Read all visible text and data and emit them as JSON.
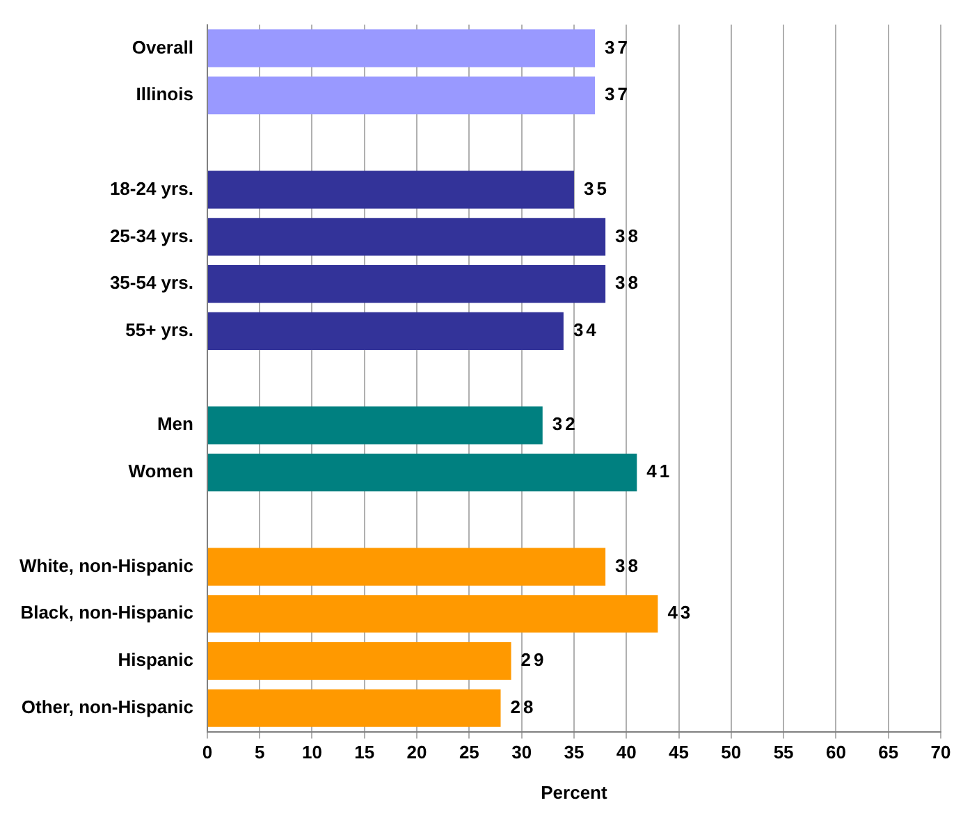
{
  "chart_data": {
    "type": "bar",
    "orientation": "horizontal",
    "xlabel": "Percent",
    "categories": [
      "Overall",
      "Illinois",
      null,
      "18-24 yrs.",
      "25-34 yrs.",
      "35-54 yrs.",
      "55+ yrs.",
      null,
      "Men",
      "Women",
      null,
      "White, non-Hispanic",
      "Black, non-Hispanic",
      "Hispanic",
      "Other, non-Hispanic"
    ],
    "values": [
      37,
      37,
      null,
      35,
      38,
      38,
      34,
      null,
      32,
      41,
      null,
      38,
      43,
      29,
      28
    ],
    "colors": [
      "#9999ff",
      "#9999ff",
      "#ffffff",
      "#333399",
      "#333399",
      "#333399",
      "#333399",
      "#ffffff",
      "#008080",
      "#008080",
      "#ffffff",
      "#ff9900",
      "#ff9900",
      "#ff9900",
      "#ff9900"
    ],
    "xlim": [
      0,
      70
    ],
    "xticks": [
      0,
      5,
      10,
      15,
      20,
      25,
      30,
      35,
      40,
      45,
      50,
      55,
      60,
      65,
      70
    ],
    "grid": "x",
    "data_labels": true,
    "legend": false
  }
}
